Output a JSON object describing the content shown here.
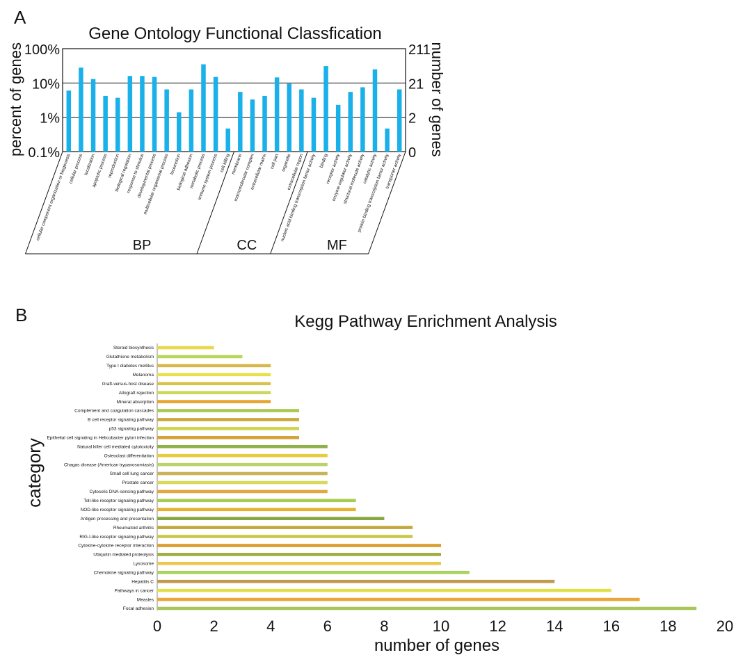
{
  "panels": {
    "a_label": "A",
    "b_label": "B"
  },
  "chart_data": [
    {
      "type": "bar",
      "title": "Gene Ontology Functional Classfication",
      "ylabel": "percent of genes",
      "ylabel_right": "number of genes",
      "yscale": "log",
      "ylim": [
        0.1,
        100
      ],
      "y_ticks": [
        "0.1%",
        "1%",
        "10%",
        "100%"
      ],
      "y_ticks_right": [
        "0",
        "2",
        "21",
        "211"
      ],
      "grid": true,
      "color": "#1ab0ea",
      "categories": [
        "cellular component organization or biogenesis",
        "cellular process",
        "localization",
        "apoptotic process",
        "reproduction",
        "biological regulation",
        "response to stimulus",
        "developmental process",
        "multicellular organismal process",
        "locomotion",
        "biological adhesion",
        "metabolic process",
        "immune system process",
        "cell killing",
        "membrane",
        "macromolecular complex",
        "extracellular matrix",
        "cell part",
        "organelle",
        "extracellular region",
        "nucleic acid binding transcription factor activity",
        "binding",
        "receptor activity",
        "enzyme regulator activity",
        "structural molecule activity",
        "catalytic activity",
        "protein binding transcription factor activity",
        "transporter activity"
      ],
      "values": [
        6,
        28,
        13,
        4.2,
        3.7,
        16,
        16,
        15,
        6.5,
        1.4,
        6.5,
        35,
        15,
        0.47,
        5.5,
        3.3,
        4.2,
        14.5,
        9.5,
        6.5,
        3.7,
        31,
        2.3,
        5.5,
        7.5,
        25,
        0.47,
        6.5
      ],
      "groups": [
        {
          "name": "BP",
          "start": 0,
          "end": 13
        },
        {
          "name": "CC",
          "start": 14,
          "end": 19
        },
        {
          "name": "MF",
          "start": 20,
          "end": 27
        }
      ]
    },
    {
      "type": "bar",
      "orientation": "horizontal",
      "title": "Kegg Pathway Enrichment Analysis",
      "xlabel": "number of genes",
      "ylabel": "category",
      "xlim": [
        0,
        20
      ],
      "x_ticks": [
        "0",
        "2",
        "4",
        "6",
        "8",
        "10",
        "12",
        "14",
        "16",
        "18",
        "20"
      ],
      "categories": [
        "Steroid biosynthesis",
        "Glutathione metabolism",
        "Type I diabetes mellitus",
        "Melanoma",
        "Graft-versus-host disease",
        "Allograft rejection",
        "Mineral absorption",
        "Complement and coagulation cascades",
        "B cell receptor signaling pathway",
        "p53 signaling pathway",
        "Epithelial cell signaling in Helicobacter pylori infection",
        "Natural killer cell mediated cytotoxicity",
        "Osteoclast differentiation",
        "Chagas disease (American trypanosomiasis)",
        "Small cell lung cancer",
        "Prostate cancer",
        "Cytosolic DNA-sensing pathway",
        "Toll-like receptor signaling pathway",
        "NOD-like receptor signaling pathway",
        "Antigen processing and presentation",
        "Rheumatoid arthritis",
        "RIG-I-like receptor signaling pathway",
        "Cytokine-cytokine receptor interaction",
        "Ubiquitin mediated proteolysis",
        "Lysosome",
        "Chemokine signaling pathway",
        "Hepatitis C",
        "Pathways in cancer",
        "Measles",
        "Focal adhesion"
      ],
      "values": [
        2,
        3,
        4,
        4,
        4,
        4,
        4,
        5,
        5,
        5,
        5,
        6,
        6,
        6,
        6,
        6,
        6,
        7,
        7,
        8,
        9,
        9,
        10,
        10,
        10,
        11,
        14,
        16,
        17,
        19
      ],
      "colors": [
        "#e8d84a",
        "#b9d65a",
        "#d6b84a",
        "#e6e04a",
        "#d9c24c",
        "#c9d95a",
        "#e6a52e",
        "#a8c94e",
        "#c9a83e",
        "#cfd64e",
        "#d4a23a",
        "#8fb04a",
        "#e6cc3e",
        "#b8d46a",
        "#c9b45a",
        "#d9d85e",
        "#e0a83e",
        "#a6cc55",
        "#e6b22e",
        "#86a840",
        "#c2a83a",
        "#c8c84a",
        "#d99e2e",
        "#a0ad3e",
        "#ecc84a",
        "#a8d45e",
        "#c09a4a",
        "#e0e04a",
        "#e6a83a",
        "#a8c65a"
      ]
    }
  ]
}
